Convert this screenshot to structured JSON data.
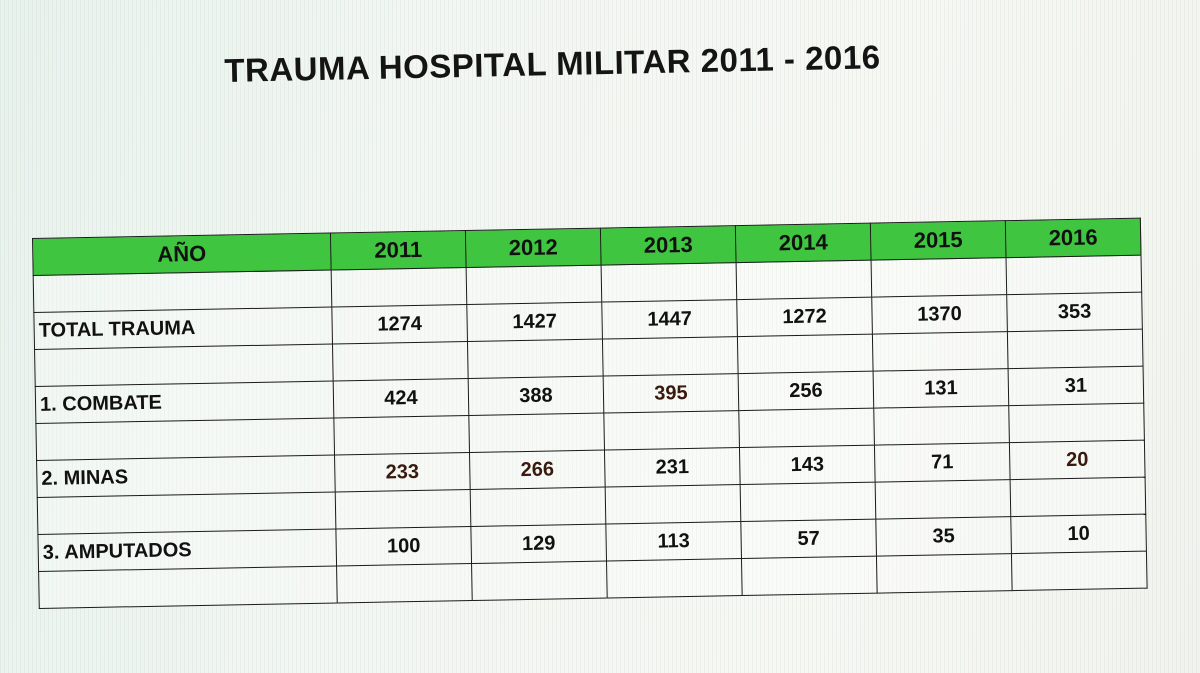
{
  "title": "TRAUMA HOSPITAL MILITAR 2011 - 2016",
  "colors": {
    "header_green": "#3fc53f",
    "grid_lines": "#1a1a1a",
    "text": "#111111"
  },
  "table": {
    "header": {
      "label": "AÑO",
      "years": [
        "2011",
        "2012",
        "2013",
        "2014",
        "2015",
        "2016"
      ]
    },
    "rows": [
      {
        "label": "TOTAL TRAUMA",
        "values": [
          "1274",
          "1427",
          "1447",
          "1272",
          "1370",
          "353"
        ]
      },
      {
        "label": "1. COMBATE",
        "values": [
          "424",
          "388",
          "395",
          "256",
          "131",
          "31"
        ]
      },
      {
        "label": "2. MINAS",
        "values": [
          "233",
          "266",
          "231",
          "143",
          "71",
          "20"
        ]
      },
      {
        "label": "3. AMPUTADOS",
        "values": [
          "100",
          "129",
          "113",
          "57",
          "35",
          "10"
        ]
      }
    ]
  }
}
